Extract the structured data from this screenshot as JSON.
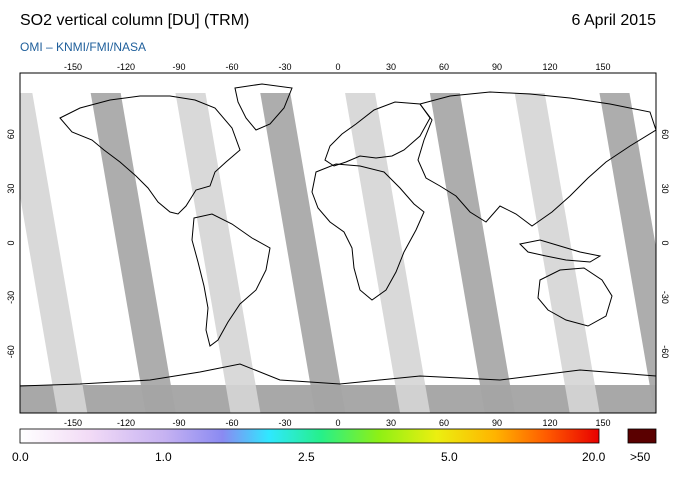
{
  "header": {
    "title": "SO2 vertical column [DU] (TRM)",
    "date": "6 April 2015",
    "subtitle": "OMI  –  KNMI/FMI/NASA"
  },
  "map": {
    "lon_ticks": [
      "-150",
      "-120",
      "-90",
      "-60",
      "-30",
      "0",
      "30",
      "60",
      "90",
      "120",
      "150"
    ],
    "lat_ticks": [
      "60",
      "30",
      "0",
      "-30",
      "-60"
    ],
    "colors": {
      "swath_light": "#d5d5d5",
      "swath_dark": "#a4a4a4",
      "ocean": "#ffffff",
      "coast": "#000000"
    }
  },
  "colorbar": {
    "labels": [
      "0.0",
      "1.0",
      "2.5",
      "5.0",
      "20.0"
    ],
    "overflow_label": ">50",
    "overflow_color": "#5a0000",
    "gradient_colors": [
      "#ffffff",
      "#f0d8f5",
      "#b9a6ee",
      "#7b78f0",
      "#2fe8ff",
      "#26f08a",
      "#8ef015",
      "#ecef10",
      "#ffb400",
      "#ff5a00",
      "#e80000"
    ]
  }
}
